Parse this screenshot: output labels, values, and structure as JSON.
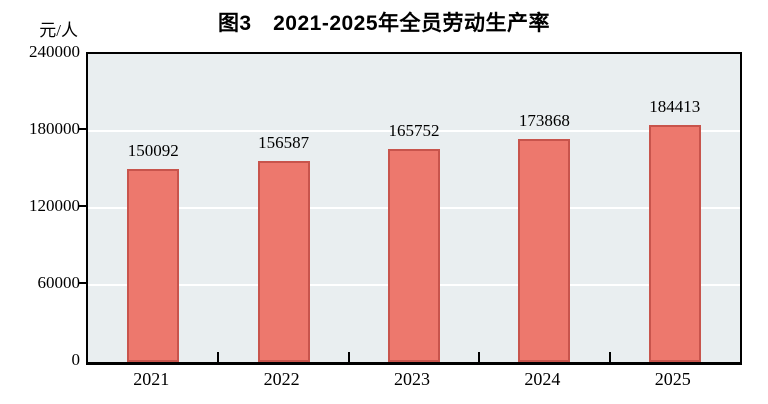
{
  "chart_data": {
    "type": "bar",
    "title": "图3　2021-2025年全员劳动生产率",
    "ylabel": "元/人",
    "xlabel": "",
    "categories": [
      "2021",
      "2022",
      "2023",
      "2024",
      "2025"
    ],
    "values": [
      150092,
      156587,
      165752,
      173868,
      184413
    ],
    "value_labels": [
      "150092",
      "156587",
      "165752",
      "173868",
      "184413"
    ],
    "ylim": [
      0,
      240000
    ],
    "yticks": [
      0,
      60000,
      120000,
      180000,
      240000
    ],
    "ytick_labels": [
      "0",
      "60000",
      "120000",
      "180000",
      "240000"
    ],
    "grid": true,
    "legend_position": "none",
    "colors": {
      "bar_fill": "#ED786D",
      "bar_border": "#C8544C",
      "plot_background": "#E9EEF0",
      "gridline": "#FFFFFF",
      "axis": "#000000",
      "text": "#000000",
      "page_background": "#FFFFFF"
    }
  }
}
